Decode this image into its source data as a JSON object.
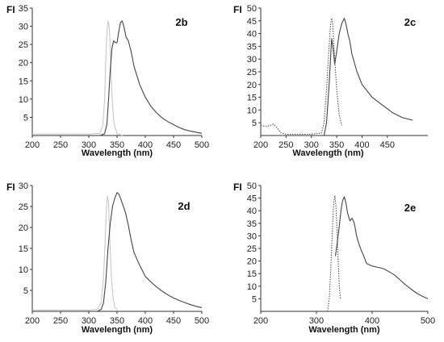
{
  "chart_data": [
    {
      "type": "line",
      "ylabel": "FI",
      "xlabel": "Wavelength (nm)",
      "annotation": "2b",
      "xlim": [
        200,
        500
      ],
      "ylim": [
        0,
        35
      ],
      "xticks": [
        200,
        250,
        300,
        350,
        400,
        450,
        500
      ],
      "yticks": [
        5,
        10,
        15,
        20,
        25,
        30,
        35
      ],
      "series": [
        {
          "color": "#c8c8c8",
          "dash": "solid",
          "x": [
            200,
            300,
            320,
            325,
            328,
            330,
            332,
            334,
            336,
            338,
            340,
            342,
            345,
            350,
            360
          ],
          "y": [
            0.4,
            0.4,
            0.6,
            3,
            10,
            20,
            28,
            31.5,
            30,
            24,
            15,
            8,
            3,
            0.5,
            0
          ]
        },
        {
          "color": "#444444",
          "dash": "solid",
          "x": [
            320,
            328,
            332,
            335,
            338,
            341,
            344,
            347,
            350,
            353,
            356,
            359,
            362,
            366,
            370,
            375,
            380,
            390,
            400,
            410,
            420,
            430,
            440,
            450,
            460,
            470,
            480,
            490,
            500
          ],
          "y": [
            0,
            0.5,
            3,
            10,
            18,
            24,
            26,
            25.5,
            25.5,
            28.5,
            31,
            31.5,
            30,
            27,
            26,
            23,
            19,
            14,
            10.5,
            8,
            6.2,
            4.8,
            3.8,
            3,
            2.2,
            1.6,
            1.2,
            0.9,
            0.6
          ]
        }
      ]
    },
    {
      "type": "line",
      "ylabel": "FI",
      "xlabel": "Wavelength (nm)",
      "annotation": "2c",
      "xlim": [
        200,
        500
      ],
      "ylim": [
        0,
        50
      ],
      "xticks": [
        200,
        250,
        300,
        350,
        400,
        450
      ],
      "yticks": [
        5,
        10,
        15,
        20,
        25,
        30,
        35,
        40,
        45,
        50
      ],
      "series": [
        {
          "color": "#555555",
          "dash": "dotted",
          "x": [
            200,
            210,
            220,
            225,
            230,
            240,
            250,
            300,
            320,
            325,
            330,
            335,
            338,
            340,
            342,
            345,
            350,
            355,
            360
          ],
          "y": [
            4,
            3.5,
            4,
            4.5,
            3.5,
            1,
            0.5,
            0.5,
            1,
            5,
            18,
            35,
            44,
            46,
            44,
            33,
            18,
            8,
            4
          ]
        },
        {
          "color": "#444444",
          "dash": "solid",
          "x": [
            325,
            330,
            335,
            340,
            343,
            346,
            350,
            355,
            360,
            365,
            368,
            372,
            376,
            380,
            390,
            400,
            420,
            440,
            460,
            480,
            500
          ],
          "y": [
            0,
            5,
            20,
            38,
            34,
            28,
            33,
            40,
            44,
            46,
            44,
            40,
            37,
            32,
            25,
            20,
            15,
            12,
            9,
            7,
            6
          ]
        }
      ]
    },
    {
      "type": "line",
      "ylabel": "FI",
      "xlabel": "Wavelength (nm)",
      "annotation": "2d",
      "xlim": [
        200,
        500
      ],
      "ylim": [
        0,
        30
      ],
      "xticks": [
        200,
        250,
        300,
        350,
        400,
        450,
        500
      ],
      "yticks": [
        5,
        10,
        15,
        20,
        25,
        30
      ],
      "series": [
        {
          "color": "#c8c8c8",
          "dash": "solid",
          "x": [
            200,
            300,
            315,
            322,
            326,
            329,
            331,
            333,
            335,
            337,
            340,
            343,
            346,
            350
          ],
          "y": [
            0.3,
            0.3,
            0.5,
            2,
            8,
            17,
            24,
            27.5,
            26,
            18,
            8,
            3,
            1,
            0.3
          ]
        },
        {
          "color": "#444444",
          "dash": "solid",
          "x": [
            315,
            322,
            326,
            330,
            334,
            338,
            342,
            346,
            350,
            353,
            356,
            360,
            365,
            370,
            375,
            380,
            390,
            400,
            410,
            420,
            430,
            440,
            450,
            460,
            470,
            480,
            490,
            500
          ],
          "y": [
            0,
            0.5,
            2,
            7,
            15,
            21,
            25,
            27,
            28.3,
            28,
            27,
            25.5,
            23.5,
            20.5,
            17,
            14,
            11,
            8.3,
            7,
            5.8,
            4.8,
            3.9,
            3.2,
            2.6,
            2.1,
            1.6,
            1.2,
            0.9
          ]
        }
      ]
    },
    {
      "type": "line",
      "ylabel": "FI",
      "xlabel": "Wavelength (nm)",
      "annotation": "2e",
      "xlim": [
        200,
        500
      ],
      "ylim": [
        0,
        50
      ],
      "xticks": [
        200,
        300,
        400,
        500
      ],
      "yticks": [
        5,
        10,
        15,
        20,
        25,
        30,
        35,
        40,
        45,
        50
      ],
      "series": [
        {
          "color": "#555555",
          "dash": "dotted",
          "x": [
            320,
            323,
            326,
            329,
            331,
            333,
            335,
            337,
            339,
            341,
            343
          ],
          "y": [
            0,
            5,
            18,
            34,
            43,
            46,
            42,
            32,
            20,
            10,
            5
          ]
        },
        {
          "color": "#444444",
          "dash": "solid",
          "x": [
            334,
            336,
            340,
            344,
            347,
            350,
            353,
            356,
            360,
            364,
            368,
            372,
            376,
            380,
            385,
            390,
            400,
            410,
            420,
            430,
            440,
            450,
            460,
            470,
            480,
            490,
            500
          ],
          "y": [
            22,
            25,
            32,
            40,
            44,
            45.5,
            43,
            39,
            36,
            37,
            35,
            30,
            27,
            24.5,
            22,
            19,
            18,
            17.5,
            17,
            15.8,
            14.5,
            12.5,
            10.5,
            8.8,
            7.2,
            6,
            5
          ]
        }
      ]
    }
  ]
}
